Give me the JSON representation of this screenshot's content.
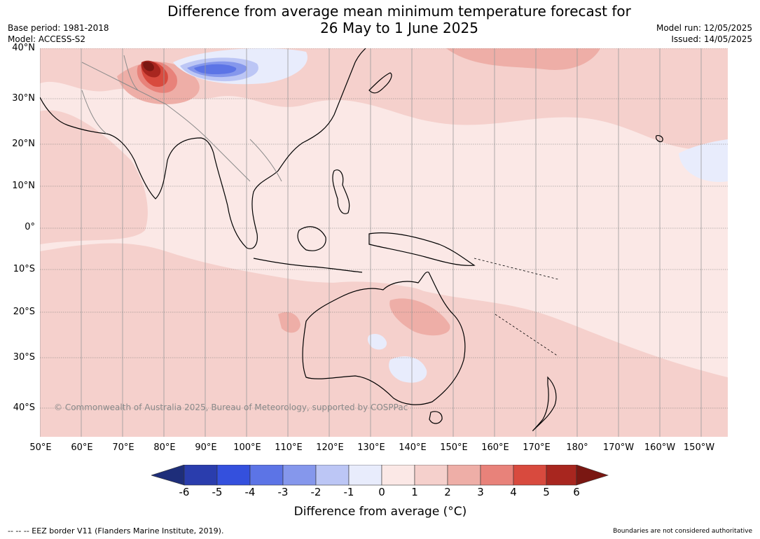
{
  "title_line1": "Difference from average mean minimum temperature forecast for",
  "title_line2": "26 May to 1 June 2025",
  "meta": {
    "base_period": "Base period: 1981-2018",
    "model": "Model: ACCESS-S2",
    "model_run": "Model run: 12/05/2025",
    "issued": "Issued: 14/05/2025"
  },
  "map": {
    "lat_labels": [
      "40°N",
      "30°N",
      "20°N",
      "10°N",
      "0°",
      "10°S",
      "20°S",
      "30°S",
      "40°S"
    ],
    "lon_labels": [
      "50°E",
      "60°E",
      "70°E",
      "80°E",
      "90°E",
      "100°E",
      "110°E",
      "120°E",
      "130°E",
      "140°E",
      "150°E",
      "160°E",
      "170°E",
      "180°",
      "170°W",
      "160°W",
      "150°W"
    ],
    "copyright": "© Commonwealth of Australia 2025, Bureau of Meteorology, supported by COSPPac"
  },
  "colorbar": {
    "ticks": [
      "-6",
      "-5",
      "-4",
      "-3",
      "-2",
      "-1",
      "0",
      "1",
      "2",
      "3",
      "4",
      "5",
      "6"
    ],
    "colors": [
      "#1e2e7a",
      "#2a3dad",
      "#3450dd",
      "#5c74e6",
      "#8597ec",
      "#bcc6f5",
      "#e8ecfc",
      "#fbe8e6",
      "#f5d0cc",
      "#eeaea7",
      "#e8827a",
      "#d84a3e",
      "#a8261f",
      "#7a1712"
    ],
    "label": "Difference from average (°C)"
  },
  "footer": {
    "eez": "--  --  -- EEZ border V11 (Flanders Marine Institute, 2019).",
    "boundaries": "Boundaries are not considered authoritative"
  }
}
